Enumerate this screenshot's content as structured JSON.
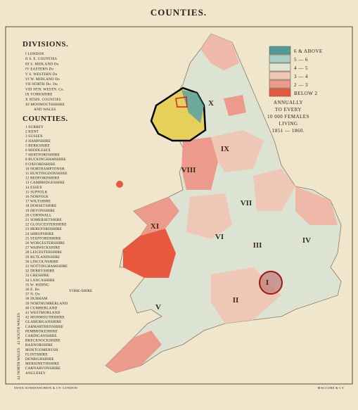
{
  "title": "COUNTIES.",
  "divisions": {
    "heading": "DIVISIONS.",
    "items": [
      "I LONDON",
      "II S. E. COUNTIES",
      "III S. MIDLAND Do",
      "IV EASTERN Do",
      "V S. WESTERN Do",
      "VI W. MIDLAND Do",
      "VII NORTH Do. Do.",
      "VIII NTH. WESTN. Co.",
      "IX YORKSHIRE",
      "X NTHN. COUNTIES",
      "XI MONMOUTHSHIRE",
      "AND WALES"
    ]
  },
  "counties": {
    "heading": "COUNTIES.",
    "items": [
      "1 SURREY",
      "2 KENT",
      "3 SUSSEX",
      "4 HAMPSHIRE",
      "5 BERKSHIRE",
      "6 MIDDLESEX",
      "7 HERTFORDSHIRE",
      "8 BUCKINGHAMSHIRE",
      "9 OXFORDSHIRE",
      "10 NORTHAMPTONSH.",
      "11 HUNTINGDONSHIRE",
      "12 BEDFORDSHIRE",
      "13 CAMBRIDGESHIRE",
      "14 ESSEX",
      "15 SUFFOLK",
      "16 NORFOLK",
      "17 WILTSHIRE",
      "18 DORSETSHIRE",
      "19 DEVONSHIRE",
      "20 CORNWALL",
      "21 SOMERSETSHIRE",
      "22 GLOUCESTERSHIRE",
      "23 HEREFORDSHIRE",
      "24 SHROPSHIRE",
      "25 STAFFORDSHIRE",
      "26 WORCESTERSHIRE",
      "27 WARWICKSHIRE",
      "28 LEICESTERSHIRE",
      "29 RUTLANDSHIRE",
      "30 LINCOLNSHIRE",
      "31 NOTTINGHAMSHIRE",
      "32 DERBYSHIRE",
      "33 CHESHIRE",
      "34 LANCASHIRE",
      "35 W. RIDING",
      "36 E. Do",
      "37 N. Do",
      "38 DURHAM",
      "39 NORTHUMBERLAND",
      "40 CUMBERLAND",
      "41 WESTMORLAND",
      "42 MONMOUTHSHIRE",
      "GLAMORGANSHIRE",
      "CARMARTHENSHIRE",
      "PEMBROKESHIRE",
      "CARDIGANSHIRE",
      "BRECKNOCKSHIRE",
      "RADNORSHIRE",
      "MONTGOMERYSH.",
      "FLINTSHIRE",
      "DENBIGHSHIRE",
      "MERIONETHSHIRE",
      "CARNARVONSHIRE",
      "ANGLESEY"
    ],
    "york_label": "YORK-SHIRE",
    "south_wales": "43 SOUTH WALES",
    "north_wales": "44 NORTH WALES"
  },
  "legend": {
    "items": [
      {
        "label": "6 & ABOVE",
        "color": "#4f9c9a"
      },
      {
        "label": "5 — 6",
        "color": "#a9cfc8"
      },
      {
        "label": "4 — 5",
        "color": "#dfe6d6"
      },
      {
        "label": "3 — 4",
        "color": "#efc7b6"
      },
      {
        "label": "2 — 3",
        "color": "#ec9a8c"
      },
      {
        "label": "BELOW 2",
        "color": "#e8583e"
      }
    ],
    "caption": [
      "ANNUALLY",
      "TO EVERY",
      "10 000 FEMALES",
      "LIVING",
      "1851 — 1860."
    ]
  },
  "map_labels": [
    "I",
    "II",
    "III",
    "IV",
    "V",
    "VI",
    "VII",
    "VIII",
    "IX",
    "X",
    "XI"
  ],
  "footer": {
    "left": "SWAN SONNENSCHEIN & CY. LONDON",
    "right": "MACLURE & CY."
  }
}
